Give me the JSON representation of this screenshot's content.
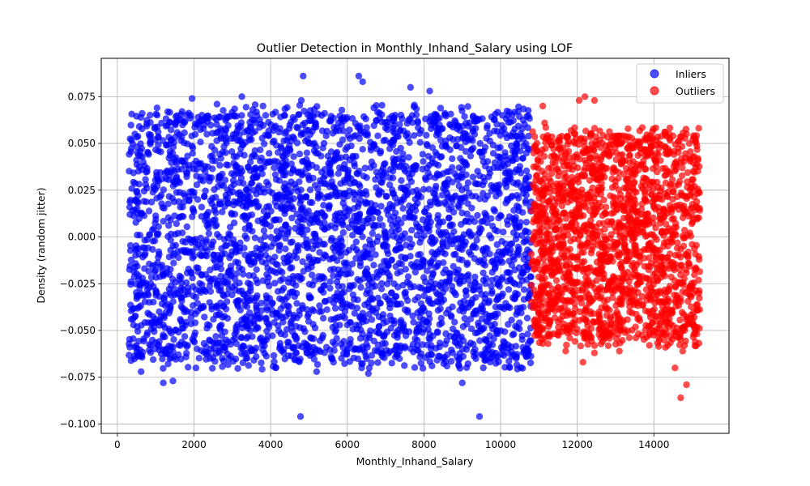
{
  "chart_data": {
    "type": "scatter",
    "title": "Outlier Detection in Monthly_Inhand_Salary using LOF",
    "xlabel": "Monthly_Inhand_Salary",
    "ylabel": "Density (random jitter)",
    "xlim": [
      -420,
      15960
    ],
    "ylim": [
      -0.105,
      0.0955
    ],
    "xticks": [
      0,
      2000,
      4000,
      6000,
      8000,
      10000,
      12000,
      14000
    ],
    "yticks": [
      -0.1,
      -0.075,
      -0.05,
      -0.025,
      0.0,
      0.025,
      0.05,
      0.075
    ],
    "xtick_labels": [
      "0",
      "2000",
      "4000",
      "6000",
      "8000",
      "10000",
      "12000",
      "14000"
    ],
    "ytick_labels": [
      "−0.100",
      "−0.075",
      "−0.050",
      "−0.025",
      "0.000",
      "0.025",
      "0.050",
      "0.075"
    ],
    "grid": true,
    "legend_position": "top-right",
    "series": [
      {
        "name": "Inliers",
        "color": "#0000ff",
        "alpha": 0.7,
        "x_range": [
          300,
          10800
        ],
        "y_core_range": [
          -0.058,
          0.058
        ],
        "notable_points": [
          [
            4850,
            0.086
          ],
          [
            6300,
            0.086
          ],
          [
            6400,
            0.083
          ],
          [
            7650,
            0.08
          ],
          [
            8150,
            0.078
          ],
          [
            1950,
            0.074
          ],
          [
            3250,
            0.075
          ],
          [
            4800,
            0.073
          ],
          [
            4780,
            -0.096
          ],
          [
            9450,
            -0.096
          ],
          [
            9000,
            -0.078
          ],
          [
            1200,
            -0.078
          ],
          [
            1450,
            -0.077
          ],
          [
            620,
            -0.072
          ],
          [
            6550,
            -0.073
          ],
          [
            5200,
            -0.072
          ],
          [
            2050,
            -0.07
          ],
          [
            8600,
            -0.069
          ],
          [
            3800,
            0.07
          ],
          [
            2600,
            0.071
          ]
        ]
      },
      {
        "name": "Outliers",
        "color": "#ff0000",
        "alpha": 0.7,
        "x_range": [
          10800,
          15200
        ],
        "y_core_range": [
          -0.048,
          0.048
        ],
        "notable_points": [
          [
            12200,
            0.075
          ],
          [
            12050,
            0.073
          ],
          [
            12450,
            0.073
          ],
          [
            11100,
            0.07
          ],
          [
            14400,
            0.055
          ],
          [
            14500,
            0.054
          ],
          [
            12350,
            0.055
          ],
          [
            14700,
            -0.086
          ],
          [
            14850,
            -0.079
          ],
          [
            14550,
            -0.07
          ],
          [
            12150,
            -0.067
          ],
          [
            14750,
            -0.061
          ],
          [
            11150,
            0.061
          ],
          [
            13100,
            -0.061
          ],
          [
            12450,
            -0.062
          ],
          [
            11700,
            -0.061
          ],
          [
            14300,
            -0.059
          ],
          [
            15050,
            0.043
          ]
        ]
      }
    ]
  }
}
